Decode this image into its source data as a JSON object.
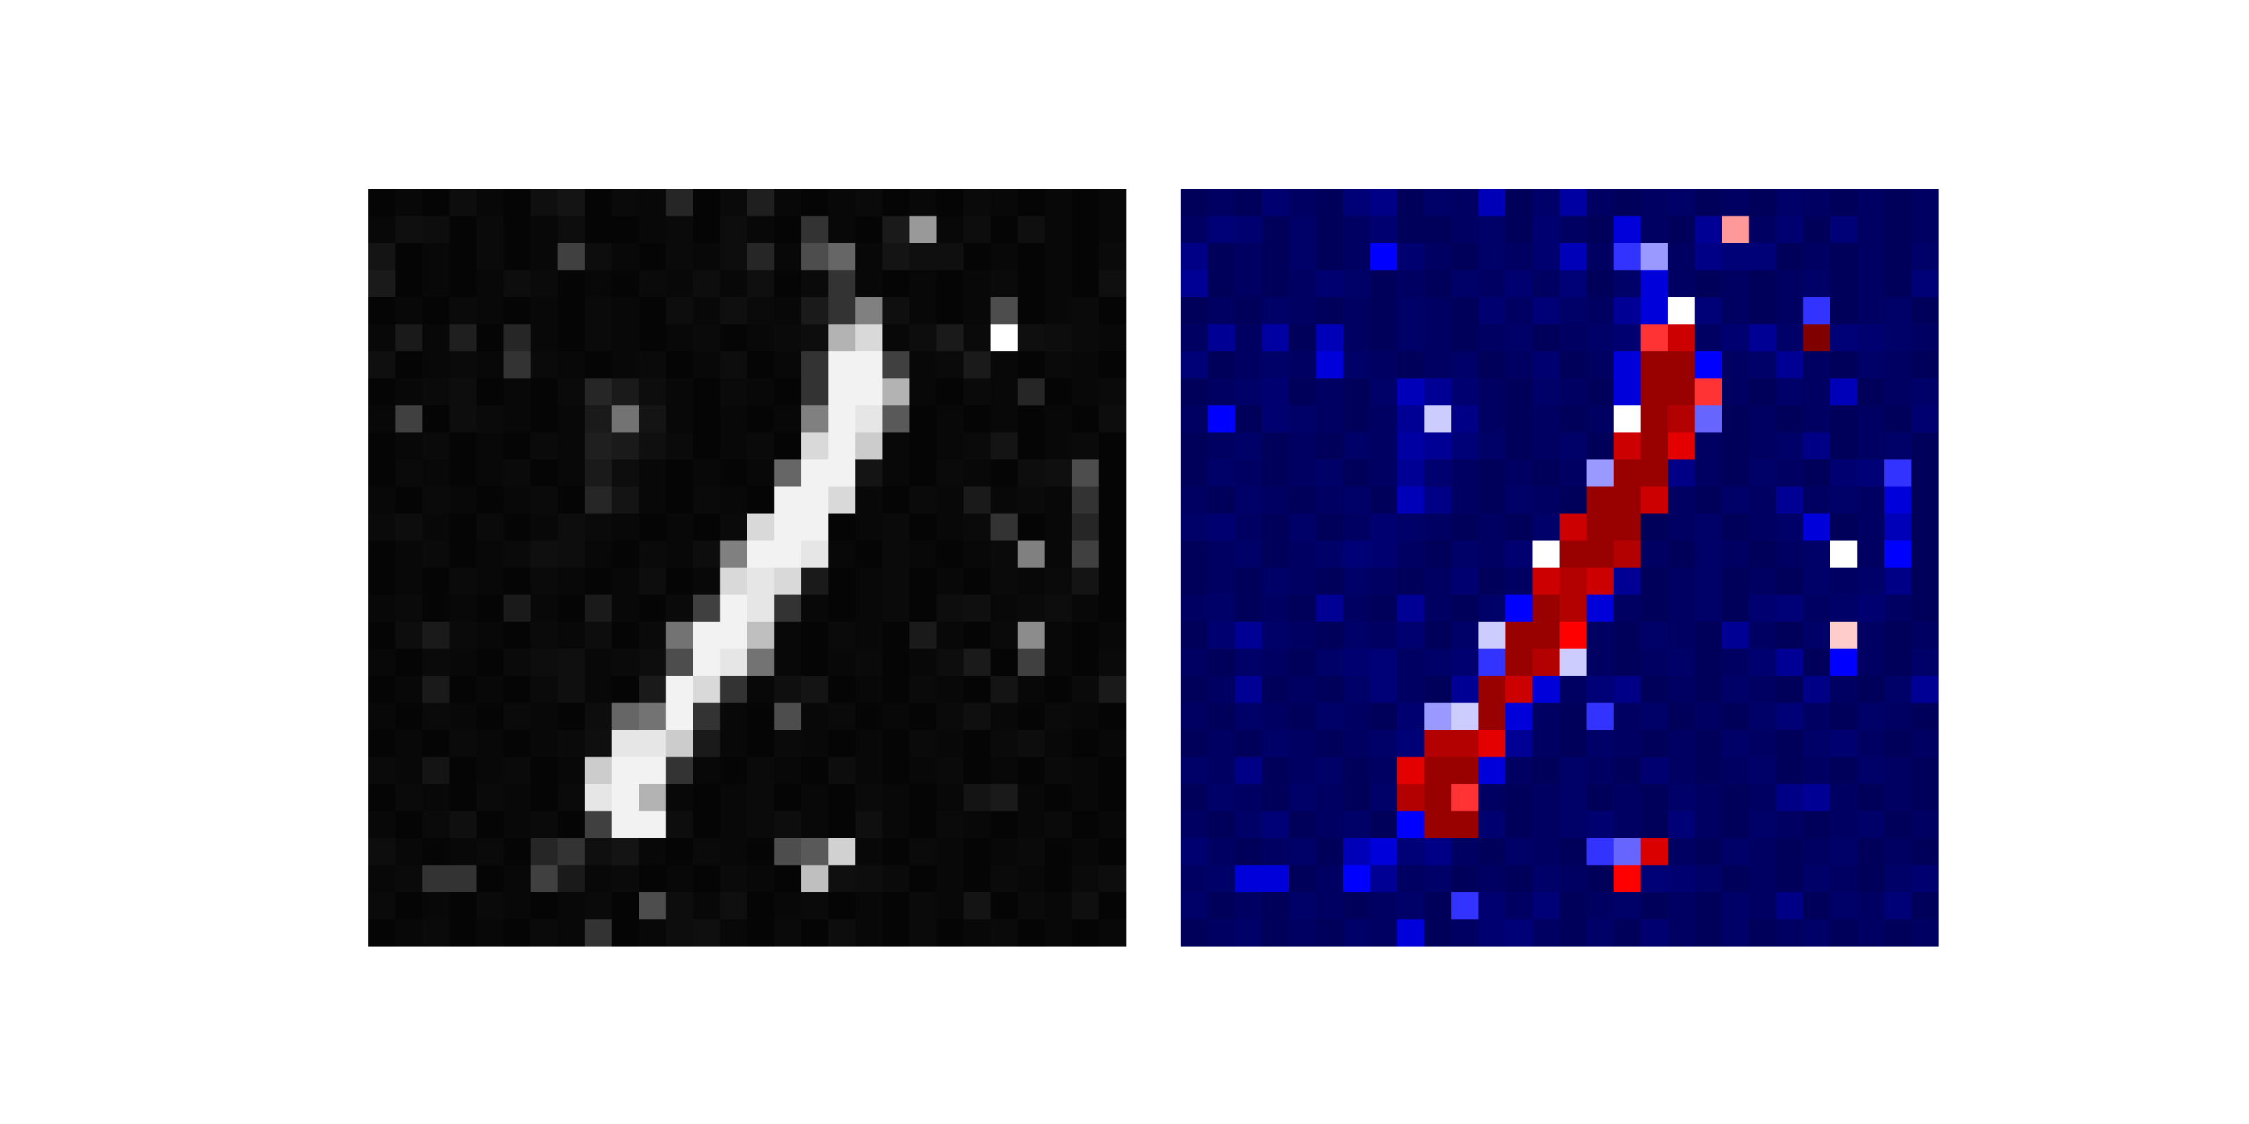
{
  "chart_data": {
    "type": "heatmap",
    "colormaps": [
      "gray",
      "seismic"
    ],
    "values": [
      [
        0.02,
        0.03,
        0.02,
        0.05,
        0.03,
        0.02,
        0.06,
        0.08,
        0.02,
        0.04,
        0.03,
        0.15,
        0.02,
        0.04,
        0.12,
        0.03,
        0.02,
        0.03,
        0.04,
        0.02,
        0.03,
        0.02,
        0.04,
        0.03,
        0.02,
        0.03,
        0.02,
        0.03
      ],
      [
        0.03,
        0.06,
        0.05,
        0.02,
        0.04,
        0.02,
        0.03,
        0.05,
        0.02,
        0.02,
        0.03,
        0.04,
        0.02,
        0.05,
        0.03,
        0.02,
        0.2,
        0.03,
        0.02,
        0.1,
        0.6,
        0.03,
        0.05,
        0.02,
        0.06,
        0.03,
        0.02,
        0.03
      ],
      [
        0.08,
        0.02,
        0.03,
        0.02,
        0.04,
        0.02,
        0.03,
        0.25,
        0.05,
        0.03,
        0.02,
        0.04,
        0.03,
        0.05,
        0.15,
        0.03,
        0.3,
        0.4,
        0.03,
        0.08,
        0.06,
        0.06,
        0.02,
        0.03,
        0.02,
        0.03,
        0.02,
        0.04
      ],
      [
        0.1,
        0.02,
        0.03,
        0.02,
        0.03,
        0.05,
        0.04,
        0.02,
        0.03,
        0.02,
        0.04,
        0.03,
        0.05,
        0.03,
        0.06,
        0.02,
        0.04,
        0.2,
        0.03,
        0.02,
        0.03,
        0.02,
        0.03,
        0.04,
        0.02,
        0.03,
        0.02,
        0.06
      ],
      [
        0.02,
        0.03,
        0.02,
        0.04,
        0.03,
        0.02,
        0.03,
        0.02,
        0.04,
        0.03,
        0.02,
        0.05,
        0.03,
        0.06,
        0.04,
        0.03,
        0.1,
        0.2,
        0.5,
        0.06,
        0.03,
        0.02,
        0.03,
        0.3,
        0.02,
        0.03,
        0.04,
        0.02
      ],
      [
        0.03,
        0.1,
        0.03,
        0.12,
        0.02,
        0.15,
        0.03,
        0.02,
        0.04,
        0.03,
        0.02,
        0.03,
        0.04,
        0.02,
        0.03,
        0.04,
        0.05,
        0.7,
        0.85,
        0.03,
        0.05,
        0.1,
        0.04,
        1.0,
        0.06,
        0.05,
        0.04,
        0.03
      ],
      [
        0.06,
        0.02,
        0.03,
        0.04,
        0.03,
        0.2,
        0.04,
        0.03,
        0.02,
        0.03,
        0.04,
        0.02,
        0.03,
        0.05,
        0.02,
        0.03,
        0.2,
        0.95,
        0.95,
        0.25,
        0.03,
        0.04,
        0.1,
        0.03,
        0.02,
        0.04,
        0.03,
        0.02
      ],
      [
        0.02,
        0.03,
        0.04,
        0.05,
        0.02,
        0.03,
        0.02,
        0.04,
        0.15,
        0.1,
        0.05,
        0.03,
        0.02,
        0.04,
        0.03,
        0.02,
        0.2,
        0.95,
        0.95,
        0.7,
        0.03,
        0.02,
        0.04,
        0.03,
        0.15,
        0.02,
        0.03,
        0.04
      ],
      [
        0.03,
        0.25,
        0.02,
        0.05,
        0.04,
        0.03,
        0.02,
        0.03,
        0.1,
        0.45,
        0.08,
        0.03,
        0.02,
        0.03,
        0.02,
        0.03,
        0.5,
        0.95,
        0.9,
        0.35,
        0.02,
        0.03,
        0.02,
        0.03,
        0.02,
        0.03,
        0.02,
        0.05
      ],
      [
        0.02,
        0.03,
        0.04,
        0.02,
        0.03,
        0.02,
        0.04,
        0.03,
        0.12,
        0.1,
        0.06,
        0.04,
        0.02,
        0.03,
        0.04,
        0.02,
        0.85,
        0.95,
        0.8,
        0.03,
        0.02,
        0.03,
        0.04,
        0.08,
        0.02,
        0.03,
        0.04,
        0.02
      ],
      [
        0.02,
        0.04,
        0.03,
        0.02,
        0.03,
        0.04,
        0.02,
        0.03,
        0.1,
        0.05,
        0.03,
        0.02,
        0.03,
        0.02,
        0.03,
        0.4,
        0.95,
        0.95,
        0.08,
        0.03,
        0.02,
        0.04,
        0.03,
        0.02,
        0.05,
        0.06,
        0.3,
        0.02
      ],
      [
        0.03,
        0.02,
        0.04,
        0.03,
        0.02,
        0.03,
        0.04,
        0.02,
        0.15,
        0.08,
        0.03,
        0.02,
        0.04,
        0.03,
        0.02,
        0.95,
        0.95,
        0.85,
        0.03,
        0.02,
        0.04,
        0.03,
        0.1,
        0.03,
        0.04,
        0.03,
        0.2,
        0.02
      ],
      [
        0.04,
        0.05,
        0.03,
        0.02,
        0.04,
        0.02,
        0.03,
        0.05,
        0.04,
        0.03,
        0.02,
        0.03,
        0.02,
        0.04,
        0.85,
        0.95,
        0.95,
        0.02,
        0.03,
        0.04,
        0.02,
        0.03,
        0.04,
        0.2,
        0.02,
        0.03,
        0.15,
        0.02
      ],
      [
        0.02,
        0.03,
        0.04,
        0.02,
        0.03,
        0.04,
        0.06,
        0.05,
        0.03,
        0.02,
        0.04,
        0.03,
        0.05,
        0.5,
        0.95,
        0.95,
        0.9,
        0.03,
        0.02,
        0.04,
        0.03,
        0.02,
        0.03,
        0.04,
        0.5,
        0.03,
        0.25,
        0.02
      ],
      [
        0.02,
        0.03,
        0.02,
        0.04,
        0.03,
        0.02,
        0.04,
        0.03,
        0.02,
        0.03,
        0.05,
        0.02,
        0.03,
        0.85,
        0.9,
        0.85,
        0.1,
        0.02,
        0.03,
        0.04,
        0.02,
        0.03,
        0.02,
        0.04,
        0.03,
        0.04,
        0.08,
        0.02
      ],
      [
        0.03,
        0.04,
        0.02,
        0.03,
        0.02,
        0.1,
        0.03,
        0.02,
        0.1,
        0.03,
        0.02,
        0.04,
        0.25,
        0.95,
        0.9,
        0.2,
        0.03,
        0.02,
        0.03,
        0.04,
        0.02,
        0.05,
        0.06,
        0.03,
        0.04,
        0.05,
        0.03,
        0.02
      ],
      [
        0.02,
        0.05,
        0.1,
        0.04,
        0.03,
        0.02,
        0.04,
        0.03,
        0.05,
        0.02,
        0.04,
        0.45,
        0.95,
        0.95,
        0.75,
        0.03,
        0.02,
        0.04,
        0.03,
        0.02,
        0.1,
        0.03,
        0.02,
        0.04,
        0.55,
        0.03,
        0.02,
        0.03
      ],
      [
        0.03,
        0.02,
        0.04,
        0.03,
        0.02,
        0.04,
        0.05,
        0.06,
        0.03,
        0.04,
        0.05,
        0.3,
        0.95,
        0.9,
        0.45,
        0.03,
        0.02,
        0.03,
        0.04,
        0.02,
        0.03,
        0.05,
        0.1,
        0.02,
        0.25,
        0.03,
        0.02,
        0.04
      ],
      [
        0.02,
        0.03,
        0.1,
        0.02,
        0.03,
        0.02,
        0.04,
        0.06,
        0.03,
        0.02,
        0.1,
        0.95,
        0.85,
        0.2,
        0.03,
        0.06,
        0.08,
        0.02,
        0.03,
        0.02,
        0.04,
        0.03,
        0.02,
        0.08,
        0.03,
        0.02,
        0.04,
        0.1
      ],
      [
        0.03,
        0.02,
        0.04,
        0.03,
        0.02,
        0.04,
        0.03,
        0.02,
        0.05,
        0.4,
        0.45,
        0.95,
        0.2,
        0.03,
        0.02,
        0.3,
        0.03,
        0.04,
        0.02,
        0.03,
        0.02,
        0.04,
        0.06,
        0.03,
        0.02,
        0.04,
        0.03,
        0.02
      ],
      [
        0.02,
        0.03,
        0.02,
        0.04,
        0.03,
        0.02,
        0.03,
        0.04,
        0.06,
        0.9,
        0.9,
        0.8,
        0.1,
        0.03,
        0.02,
        0.04,
        0.03,
        0.02,
        0.03,
        0.02,
        0.04,
        0.03,
        0.02,
        0.04,
        0.05,
        0.03,
        0.02,
        0.03
      ],
      [
        0.04,
        0.03,
        0.08,
        0.02,
        0.03,
        0.04,
        0.02,
        0.03,
        0.8,
        0.95,
        0.95,
        0.2,
        0.03,
        0.02,
        0.04,
        0.03,
        0.02,
        0.05,
        0.03,
        0.02,
        0.03,
        0.04,
        0.02,
        0.03,
        0.02,
        0.04,
        0.03,
        0.02
      ],
      [
        0.02,
        0.04,
        0.03,
        0.02,
        0.04,
        0.03,
        0.02,
        0.04,
        0.9,
        0.95,
        0.7,
        0.03,
        0.02,
        0.03,
        0.04,
        0.02,
        0.03,
        0.02,
        0.04,
        0.03,
        0.02,
        0.03,
        0.08,
        0.1,
        0.03,
        0.02,
        0.03,
        0.02
      ],
      [
        0.03,
        0.02,
        0.04,
        0.06,
        0.02,
        0.03,
        0.04,
        0.02,
        0.25,
        0.95,
        0.95,
        0.05,
        0.02,
        0.03,
        0.04,
        0.05,
        0.03,
        0.02,
        0.06,
        0.03,
        0.02,
        0.04,
        0.03,
        0.02,
        0.03,
        0.04,
        0.02,
        0.03
      ],
      [
        0.05,
        0.03,
        0.02,
        0.03,
        0.04,
        0.02,
        0.15,
        0.2,
        0.06,
        0.08,
        0.03,
        0.02,
        0.04,
        0.03,
        0.02,
        0.3,
        0.35,
        0.82,
        0.03,
        0.02,
        0.04,
        0.03,
        0.02,
        0.03,
        0.04,
        0.02,
        0.03,
        0.02
      ],
      [
        0.03,
        0.04,
        0.2,
        0.2,
        0.02,
        0.03,
        0.25,
        0.1,
        0.03,
        0.04,
        0.02,
        0.03,
        0.02,
        0.04,
        0.03,
        0.02,
        0.75,
        0.06,
        0.05,
        0.04,
        0.02,
        0.03,
        0.02,
        0.04,
        0.03,
        0.02,
        0.04,
        0.05
      ],
      [
        0.04,
        0.02,
        0.03,
        0.02,
        0.04,
        0.03,
        0.02,
        0.03,
        0.04,
        0.02,
        0.3,
        0.05,
        0.03,
        0.06,
        0.02,
        0.03,
        0.04,
        0.02,
        0.03,
        0.02,
        0.04,
        0.03,
        0.08,
        0.02,
        0.04,
        0.03,
        0.06,
        0.02
      ],
      [
        0.02,
        0.03,
        0.04,
        0.02,
        0.03,
        0.02,
        0.04,
        0.03,
        0.2,
        0.02,
        0.03,
        0.05,
        0.06,
        0.03,
        0.02,
        0.04,
        0.02,
        0.05,
        0.03,
        0.02,
        0.04,
        0.02,
        0.03,
        0.04,
        0.02,
        0.03,
        0.02,
        0.03
      ]
    ]
  }
}
